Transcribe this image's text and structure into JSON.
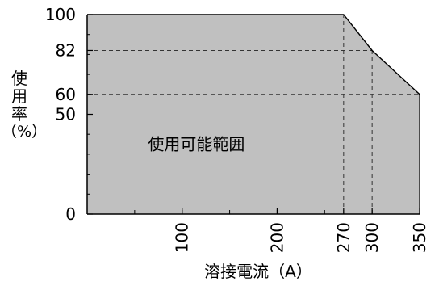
{
  "chart_data": {
    "type": "area",
    "x": [
      0,
      270,
      300,
      350
    ],
    "y": [
      100,
      100,
      82,
      60
    ],
    "xlim": [
      0,
      350
    ],
    "ylim": [
      0,
      100
    ],
    "xticks": [
      100,
      200,
      270,
      300,
      350
    ],
    "xtick_labels": [
      "100",
      "200",
      "270",
      "300",
      "350"
    ],
    "yticks": [
      0,
      50,
      60,
      82,
      100
    ],
    "ytick_labels": [
      "0",
      "50",
      "60",
      "82",
      "100"
    ],
    "reference_lines": [
      {
        "orientation": "vertical",
        "x": 270,
        "y_from": 0,
        "y_to": 100
      },
      {
        "orientation": "vertical",
        "x": 300,
        "y_from": 0,
        "y_to": 82
      },
      {
        "orientation": "horizontal",
        "y": 82,
        "x_from": 0,
        "x_to": 300
      },
      {
        "orientation": "horizontal",
        "y": 60,
        "x_from": 0,
        "x_to": 350
      }
    ],
    "region_label": "使用可能範囲",
    "region_label_position": {
      "x": 115,
      "y": 35
    },
    "xlabel": "溶接電流（A）",
    "ylabel_chars": [
      "使",
      "用",
      "率"
    ],
    "ylabel_unit": "（%）",
    "fill_color": "#c0c0c0",
    "grid": false,
    "legend": "none"
  }
}
